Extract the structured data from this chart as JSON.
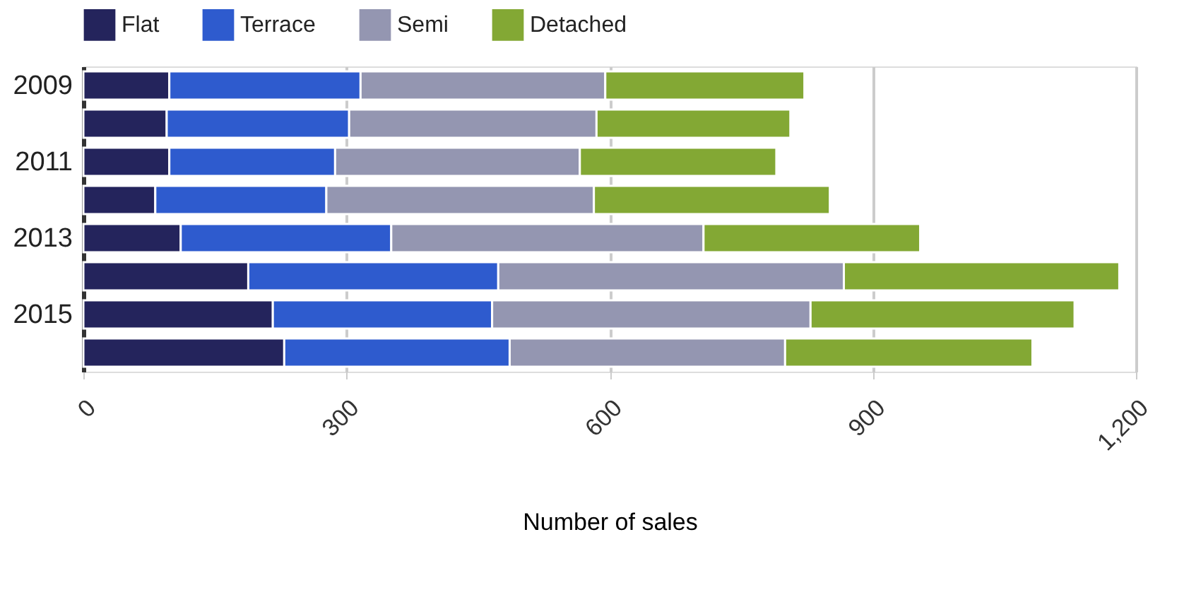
{
  "chart_data": {
    "type": "bar",
    "orientation": "horizontal",
    "stacked": true,
    "xlabel": "Number of sales",
    "categories": [
      "2009",
      null,
      "2011",
      null,
      "2013",
      null,
      "2015",
      null
    ],
    "series": [
      {
        "name": "Flat",
        "color": "#24245c",
        "values": [
          98,
          95,
          98,
          82,
          111,
          188,
          216,
          229
        ]
      },
      {
        "name": "Terrace",
        "color": "#2e5bce",
        "values": [
          218,
          208,
          189,
          195,
          240,
          285,
          250,
          257
        ]
      },
      {
        "name": "Semi",
        "color": "#9496b1",
        "values": [
          279,
          282,
          279,
          305,
          356,
          394,
          363,
          314
        ]
      },
      {
        "name": "Detached",
        "color": "#83a834",
        "values": [
          227,
          221,
          224,
          269,
          247,
          314,
          301,
          282
        ]
      }
    ],
    "xlim": [
      0,
      1200
    ],
    "xticks": [
      0,
      300,
      600,
      900,
      {
        "value": 1200,
        "label": "1,200"
      }
    ],
    "grid": "x",
    "legend": "top left"
  }
}
